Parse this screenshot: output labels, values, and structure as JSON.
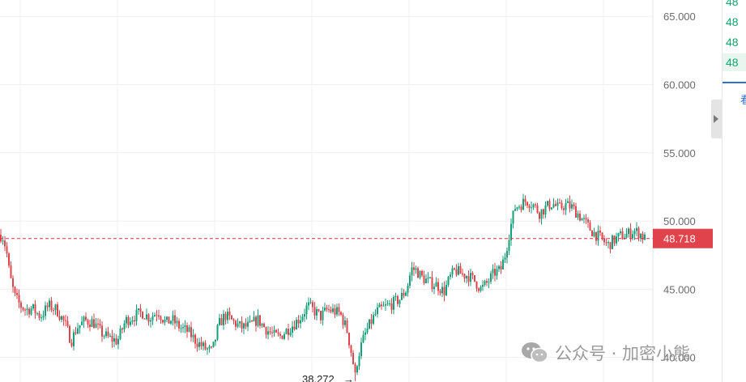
{
  "chart_data": {
    "type": "candlestick",
    "title": "",
    "xlabel": "",
    "ylabel": "",
    "ylim": [
      38.2,
      66.2
    ],
    "yticks": [
      65.0,
      60.0,
      55.0,
      50.0,
      45.0,
      40.0
    ],
    "ytick_labels": [
      "65.000",
      "60.000",
      "55.000",
      "50.000",
      "45.000",
      "40.000"
    ],
    "current_price": 48.718,
    "current_price_label": "48.718",
    "min_price": 38.272,
    "min_label": "38.272",
    "min_arrow": "→",
    "grid": true,
    "close_anchors": [
      [
        0,
        49.0
      ],
      [
        4,
        48.8
      ],
      [
        8,
        47.8
      ],
      [
        12,
        46.0
      ],
      [
        18,
        44.5
      ],
      [
        25,
        43.8
      ],
      [
        32,
        43.5
      ],
      [
        40,
        43.6
      ],
      [
        50,
        43.0
      ],
      [
        60,
        43.8
      ],
      [
        70,
        43.5
      ],
      [
        80,
        42.5
      ],
      [
        88,
        41.2
      ],
      [
        95,
        42.2
      ],
      [
        105,
        42.7
      ],
      [
        115,
        42.6
      ],
      [
        125,
        41.8
      ],
      [
        135,
        41.4
      ],
      [
        145,
        41.2
      ],
      [
        155,
        42.7
      ],
      [
        165,
        43.0
      ],
      [
        175,
        43.3
      ],
      [
        185,
        42.9
      ],
      [
        195,
        43.4
      ],
      [
        205,
        42.5
      ],
      [
        212,
        42.8
      ],
      [
        222,
        42.2
      ],
      [
        232,
        41.9
      ],
      [
        242,
        41.2
      ],
      [
        252,
        40.7
      ],
      [
        262,
        40.4
      ],
      [
        270,
        42.4
      ],
      [
        278,
        43.1
      ],
      [
        288,
        42.6
      ],
      [
        298,
        42.2
      ],
      [
        308,
        42.3
      ],
      [
        318,
        42.8
      ],
      [
        328,
        42.1
      ],
      [
        338,
        41.6
      ],
      [
        345,
        41.5
      ],
      [
        352,
        41.9
      ],
      [
        362,
        42.4
      ],
      [
        372,
        43.0
      ],
      [
        380,
        43.8
      ],
      [
        388,
        43.4
      ],
      [
        396,
        43.0
      ],
      [
        404,
        43.5
      ],
      [
        412,
        43.4
      ],
      [
        420,
        43.2
      ],
      [
        428,
        42.1
      ],
      [
        434,
        40.3
      ],
      [
        438,
        38.9
      ],
      [
        444,
        40.5
      ],
      [
        450,
        41.6
      ],
      [
        458,
        42.6
      ],
      [
        466,
        43.4
      ],
      [
        476,
        43.7
      ],
      [
        486,
        44.0
      ],
      [
        494,
        44.3
      ],
      [
        502,
        45.0
      ],
      [
        508,
        46.5
      ],
      [
        514,
        46.4
      ],
      [
        520,
        45.9
      ],
      [
        530,
        45.5
      ],
      [
        540,
        45.3
      ],
      [
        548,
        44.8
      ],
      [
        556,
        45.9
      ],
      [
        562,
        46.4
      ],
      [
        570,
        46.1
      ],
      [
        578,
        46.0
      ],
      [
        586,
        45.6
      ],
      [
        594,
        45.0
      ],
      [
        602,
        45.5
      ],
      [
        610,
        46.2
      ],
      [
        618,
        46.4
      ],
      [
        624,
        47.6
      ],
      [
        630,
        49.5
      ],
      [
        636,
        51.0
      ],
      [
        642,
        51.2
      ],
      [
        650,
        51.5
      ],
      [
        658,
        51.2
      ],
      [
        666,
        50.6
      ],
      [
        674,
        51.0
      ],
      [
        682,
        51.3
      ],
      [
        690,
        50.9
      ],
      [
        698,
        51.2
      ],
      [
        706,
        51.0
      ],
      [
        714,
        50.5
      ],
      [
        722,
        49.9
      ],
      [
        730,
        49.3
      ],
      [
        738,
        48.9
      ],
      [
        744,
        48.6
      ],
      [
        750,
        48.2
      ],
      [
        758,
        48.6
      ],
      [
        766,
        48.9
      ],
      [
        774,
        49.0
      ],
      [
        782,
        49.3
      ],
      [
        790,
        49.1
      ],
      [
        796,
        48.7
      ]
    ]
  },
  "side_panel": {
    "rows": [
      "48",
      "48",
      "48",
      "48"
    ],
    "tab_glyph": "看"
  },
  "colors": {
    "up": "#12a07a",
    "down": "#e0434b",
    "price_line": "#d9363e",
    "price_tag": "#e0434b",
    "grid": "#efefef",
    "axis_text": "#6b6b6b"
  },
  "watermark": {
    "text": "公众号 · 加密小熊",
    "icon": "wechat-icon"
  }
}
